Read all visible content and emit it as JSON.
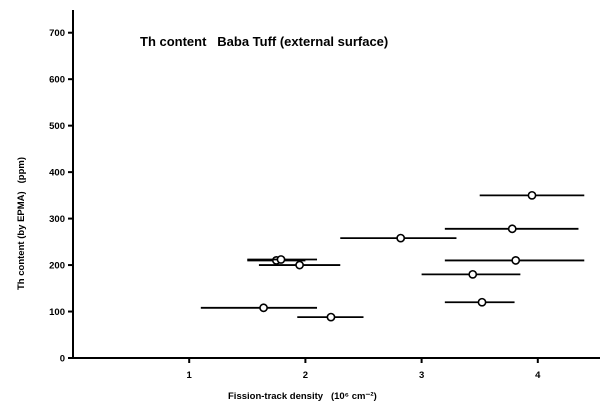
{
  "chart_data": {
    "type": "scatter",
    "title": "Th content   Baba Tuff (external surface)",
    "xlabel": "Fission-track density   (10⁶ cm⁻²)",
    "ylabel": "Th content (by EPMA)   (ppm)",
    "xlim": [
      0,
      4.5
    ],
    "ylim": [
      0,
      750
    ],
    "x_ticks": [
      "1",
      "2",
      "3",
      "4"
    ],
    "y_ticks": [
      "0",
      "100",
      "200",
      "300",
      "400",
      "500",
      "600",
      "700"
    ],
    "grid": false,
    "error_bars": "horizontal",
    "points": [
      {
        "x": 1.64,
        "y": 108,
        "xerr_low": 1.1,
        "xerr_high": 2.1
      },
      {
        "x": 2.22,
        "y": 88,
        "xerr_low": 1.93,
        "xerr_high": 2.5
      },
      {
        "x": 1.75,
        "y": 210,
        "xerr_low": 1.5,
        "xerr_high": 2.0
      },
      {
        "x": 1.79,
        "y": 212,
        "xerr_low": 1.5,
        "xerr_high": 2.1
      },
      {
        "x": 1.95,
        "y": 200,
        "xerr_low": 1.6,
        "xerr_high": 2.3
      },
      {
        "x": 2.82,
        "y": 258,
        "xerr_low": 2.3,
        "xerr_high": 3.3
      },
      {
        "x": 3.52,
        "y": 120,
        "xerr_low": 3.2,
        "xerr_high": 3.8
      },
      {
        "x": 3.44,
        "y": 180,
        "xerr_low": 3.0,
        "xerr_high": 3.85
      },
      {
        "x": 3.81,
        "y": 210,
        "xerr_low": 3.2,
        "xerr_high": 4.4
      },
      {
        "x": 3.78,
        "y": 278,
        "xerr_low": 3.2,
        "xerr_high": 4.35
      },
      {
        "x": 3.95,
        "y": 350,
        "xerr_low": 3.5,
        "xerr_high": 4.4
      }
    ]
  }
}
